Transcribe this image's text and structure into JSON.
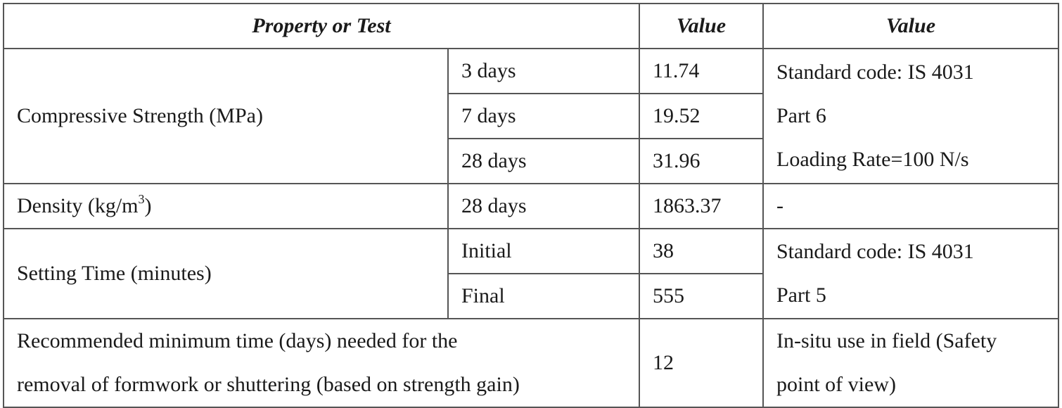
{
  "header": {
    "property": "Property or Test",
    "value1": "Value",
    "value2": "Value"
  },
  "compressive": {
    "label": "Compressive Strength (MPa)",
    "rows": [
      {
        "age": "3 days",
        "value": "11.74"
      },
      {
        "age": "7 days",
        "value": "19.52"
      },
      {
        "age": "28 days",
        "value": "31.96"
      }
    ],
    "note_lines": [
      "Standard code: IS 4031",
      "Part 6",
      "Loading Rate=100 N/s"
    ]
  },
  "density": {
    "label_prefix": "Density (kg/m",
    "label_sup": "3",
    "label_suffix": ")",
    "age": "28 days",
    "value": "1863.37",
    "note": "-"
  },
  "setting": {
    "label": "Setting Time (minutes)",
    "rows": [
      {
        "stage": "Initial",
        "value": "38"
      },
      {
        "stage": "Final",
        "value": "555"
      }
    ],
    "note_lines": [
      "Standard code: IS 4031",
      "Part 5"
    ]
  },
  "formwork": {
    "label_lines": [
      "Recommended minimum time (days) needed for the",
      "removal of formwork or shuttering (based on strength gain)"
    ],
    "value": "12",
    "note_lines": [
      "In-situ use in field (Safety",
      "point of view)"
    ]
  }
}
